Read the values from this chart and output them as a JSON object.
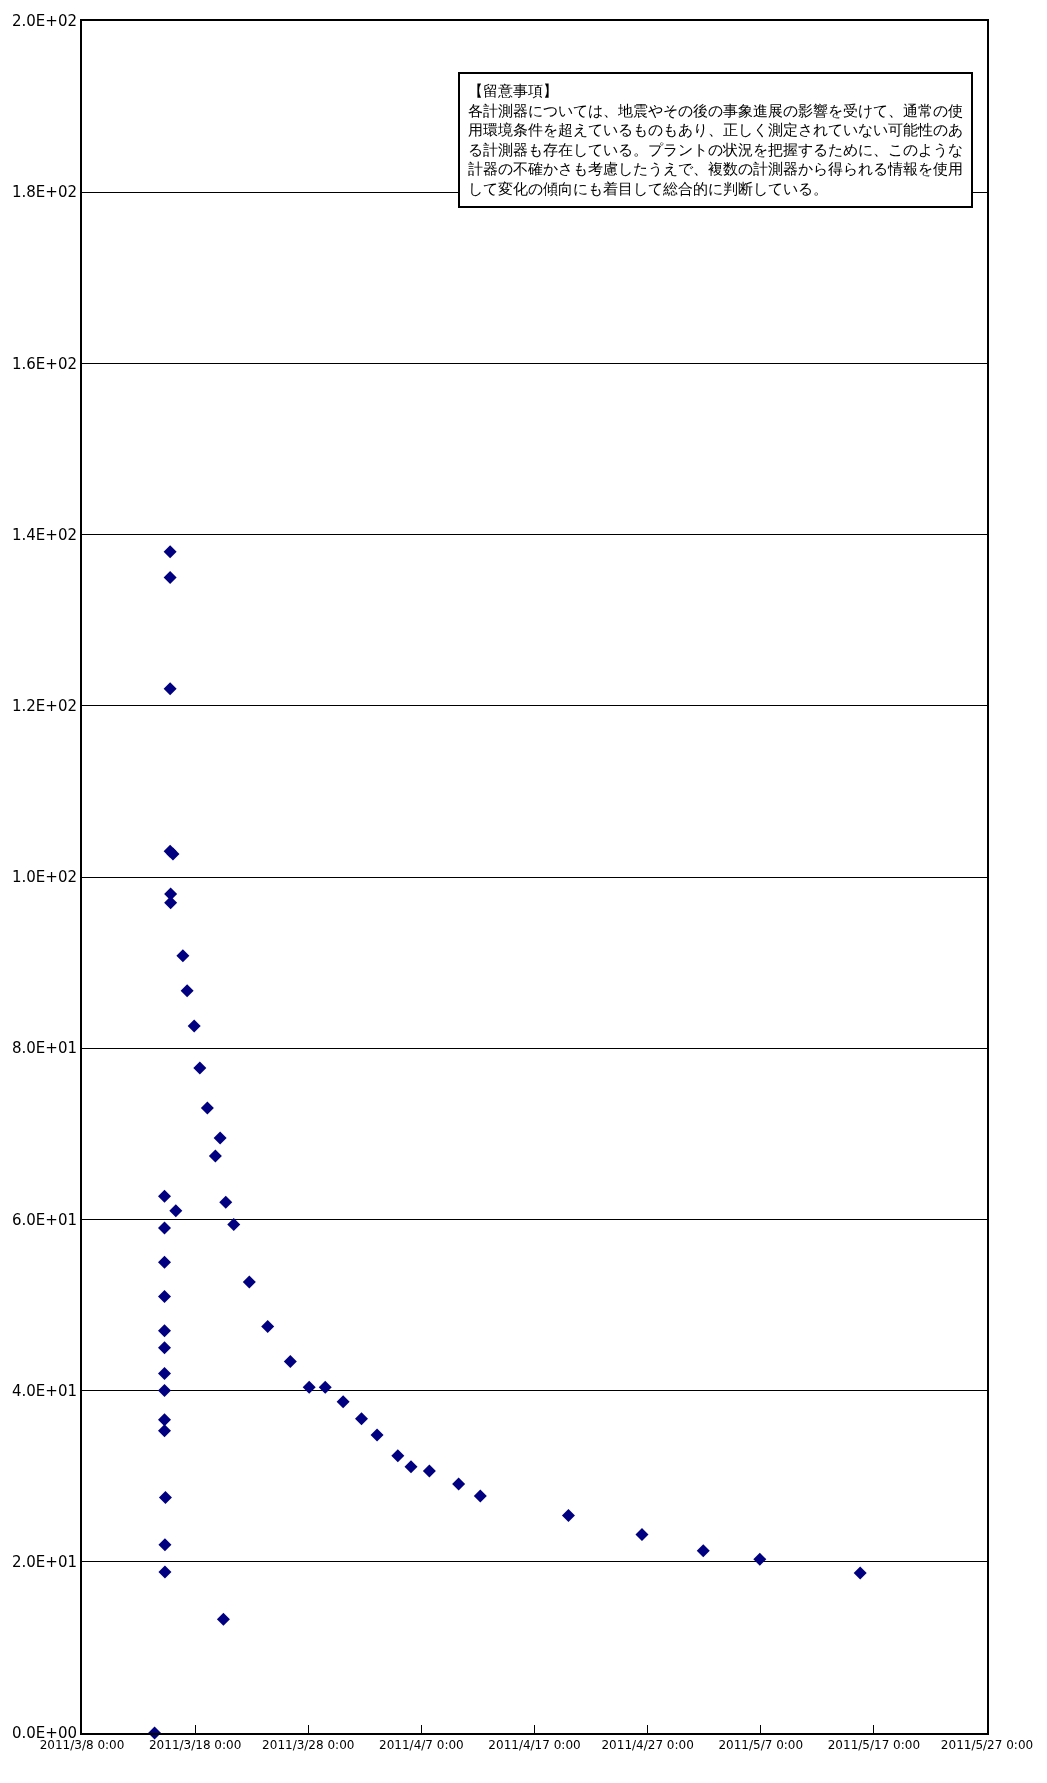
{
  "chart_data": {
    "type": "scatter",
    "x": [
      "2011-03-14T10:00",
      "2011-03-15T07:00",
      "2011-03-15T07:00",
      "2011-03-15T07:00",
      "2011-03-15T07:00",
      "2011-03-15T07:00",
      "2011-03-15T07:00",
      "2011-03-15T07:00",
      "2011-03-15T07:00",
      "2011-03-15T07:00",
      "2011-03-15T07:00",
      "2011-03-15T09:00",
      "2011-03-15T08:00",
      "2011-03-15T08:00",
      "2011-03-15T19:00",
      "2011-03-15T19:00",
      "2011-03-15T19:00",
      "2011-03-15T19:00",
      "2011-03-16T01:00",
      "2011-03-15T20:00",
      "2011-03-15T20:00",
      "2011-03-16T07:00",
      "2011-03-16T22:00",
      "2011-03-17T07:00",
      "2011-03-17T22:00",
      "2011-03-18T10:00",
      "2011-03-19T02:00",
      "2011-03-19T19:00",
      "2011-03-20T05:00",
      "2011-03-20T12:00",
      "2011-03-20T17:00",
      "2011-03-21T10:00",
      "2011-03-22T19:00",
      "2011-03-24T10:00",
      "2011-03-26T10:00",
      "2011-03-28T02:00",
      "2011-03-29T12:00",
      "2011-03-31T02:00",
      "2011-04-01T17:00",
      "2011-04-03T02:00",
      "2011-04-04T22:00",
      "2011-04-06T02:00",
      "2011-04-07T17:00",
      "2011-04-10T07:00",
      "2011-04-12T05:00",
      "2011-04-20T00:00",
      "2011-04-26T12:00",
      "2011-05-01T22:00",
      "2011-05-06T22:00",
      "2011-05-15T19:00"
    ],
    "values": [
      0,
      62.7,
      59,
      55,
      51,
      47,
      45,
      42,
      40,
      36.6,
      35.3,
      27.5,
      22,
      18.8,
      138,
      135,
      122,
      103,
      102.7,
      98,
      97,
      61,
      90.8,
      86.7,
      82.6,
      77.7,
      73,
      67.4,
      69.5,
      13.3,
      62,
      59.4,
      52.7,
      47.5,
      43.4,
      40.4,
      40.4,
      38.7,
      36.7,
      34.8,
      32.4,
      31.1,
      30.6,
      29.1,
      27.7,
      25.4,
      23.2,
      21.3,
      20.3,
      18.7
    ],
    "color": "#000080",
    "marker": "diamond",
    "xlim": [
      "2011-03-08",
      "2011-05-27"
    ],
    "xticks": [
      {
        "value": "2011-03-08",
        "label": "2011/3/8 0:00"
      },
      {
        "value": "2011-03-18",
        "label": "2011/3/18 0:00"
      },
      {
        "value": "2011-03-28",
        "label": "2011/3/28 0:00"
      },
      {
        "value": "2011-04-07",
        "label": "2011/4/7 0:00"
      },
      {
        "value": "2011-04-17",
        "label": "2011/4/17 0:00"
      },
      {
        "value": "2011-04-27",
        "label": "2011/4/27 0:00"
      },
      {
        "value": "2011-05-07",
        "label": "2011/5/7 0:00"
      },
      {
        "value": "2011-05-17",
        "label": "2011/5/17 0:00"
      },
      {
        "value": "2011-05-27",
        "label": "2011/5/27 0:00"
      }
    ],
    "ylim": [
      0,
      200
    ],
    "yticks": [
      {
        "value": 0,
        "label": "0.0E+00"
      },
      {
        "value": 20,
        "label": "2.0E+01"
      },
      {
        "value": 40,
        "label": "4.0E+01"
      },
      {
        "value": 60,
        "label": "6.0E+01"
      },
      {
        "value": 80,
        "label": "8.0E+01"
      },
      {
        "value": 100,
        "label": "1.0E+02"
      },
      {
        "value": 120,
        "label": "1.2E+02"
      },
      {
        "value": 140,
        "label": "1.4E+02"
      },
      {
        "value": 160,
        "label": "1.6E+02"
      },
      {
        "value": 180,
        "label": "1.8E+02"
      },
      {
        "value": 200,
        "label": "2.0E+02"
      }
    ],
    "grid": "y",
    "annotations": [
      "【留意事項】",
      "各計測器については、地震やその後の事象進展の影響を受けて、通常の使用環境条件を超えているものもあり、正しく測定されていない可能性のある計測器も存在している。プラントの状況を把握するために、このような計器の不確かさも考慮したうえで、複数の計測器から得られる情報を使用して変化の傾向にも着目して総合的に判断している。"
    ]
  }
}
